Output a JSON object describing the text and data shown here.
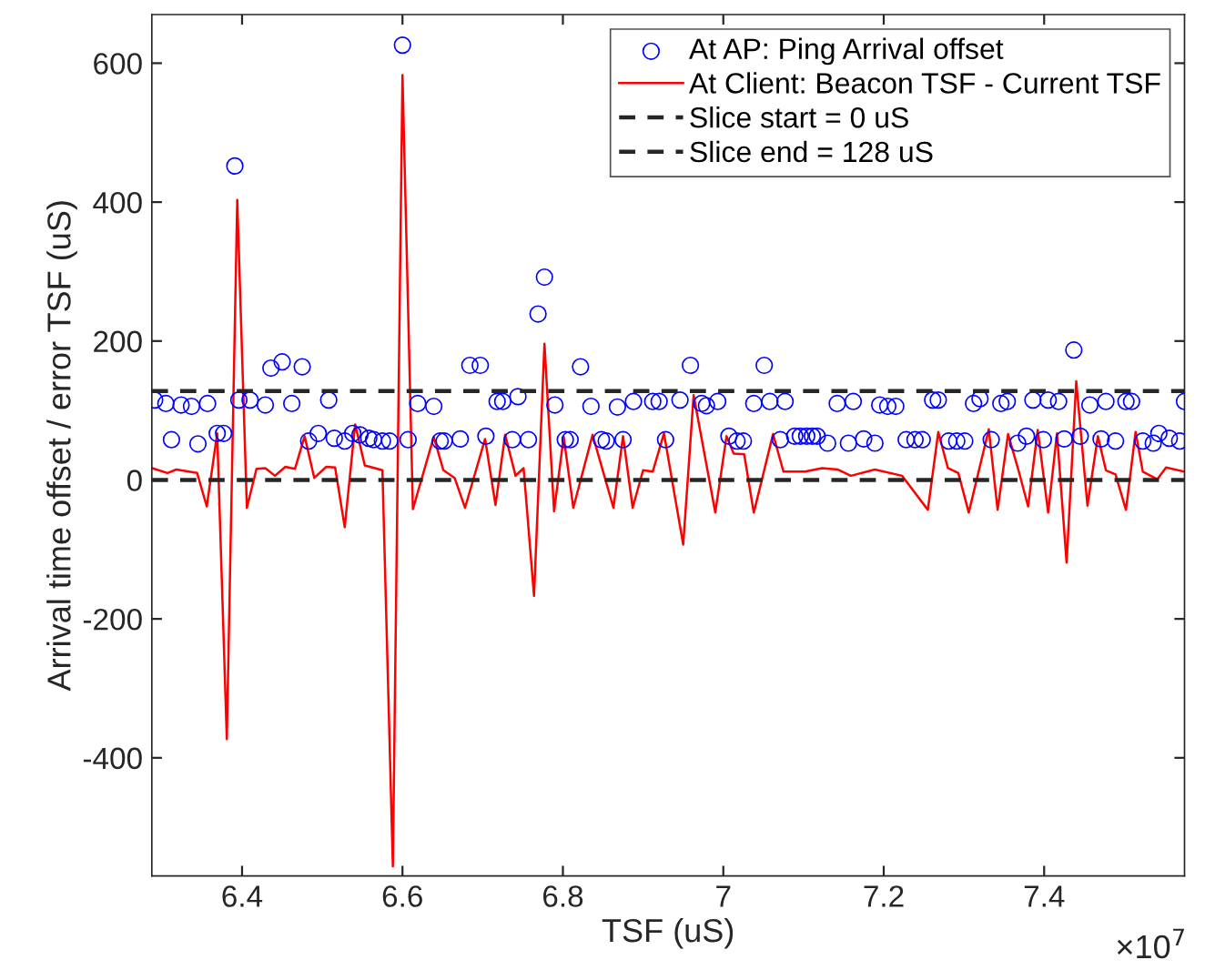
{
  "chart_data": {
    "type": "scatter",
    "xlabel": "TSF (uS)",
    "ylabel": "Arrival time offset / error TSF (uS)",
    "xlim": [
      6.2875,
      7.575
    ],
    "ylim": [
      -570,
      670
    ],
    "xticks": [
      6.4,
      6.6,
      6.8,
      7,
      7.2,
      7.4
    ],
    "yticks": [
      -400,
      -200,
      0,
      200,
      400,
      600
    ],
    "grid": false,
    "legend": "top right",
    "annotations": [
      "×10$^{7}$"
    ],
    "series": [
      {
        "name": "At AP: Ping Arrival offset",
        "marker": "circle",
        "color": "#0000ff",
        "x": [
          6.291,
          6.305,
          6.312,
          6.324,
          6.337,
          6.345,
          6.357,
          6.369,
          6.377,
          6.391,
          6.396,
          6.41,
          6.429,
          6.436,
          6.45,
          6.462,
          6.475,
          6.483,
          6.495,
          6.508,
          6.515,
          6.528,
          6.538,
          6.547,
          6.558,
          6.564,
          6.575,
          6.584,
          6.6,
          6.607,
          6.619,
          6.639,
          6.647,
          6.652,
          6.672,
          6.684,
          6.697,
          6.704,
          6.718,
          6.725,
          6.737,
          6.744,
          6.757,
          6.769,
          6.777,
          6.79,
          6.803,
          6.809,
          6.822,
          6.835,
          6.848,
          6.854,
          6.868,
          6.875,
          6.888,
          6.912,
          6.92,
          6.928,
          6.946,
          6.959,
          6.973,
          6.979,
          6.993,
          7.007,
          7.017,
          7.025,
          7.038,
          7.051,
          7.058,
          7.071,
          7.077,
          7.089,
          7.096,
          7.104,
          7.111,
          7.117,
          7.13,
          7.142,
          7.156,
          7.162,
          7.175,
          7.189,
          7.195,
          7.205,
          7.215,
          7.228,
          7.239,
          7.248,
          7.261,
          7.268,
          7.281,
          7.291,
          7.301,
          7.312,
          7.32,
          7.334,
          7.346,
          7.354,
          7.367,
          7.378,
          7.386,
          7.399,
          7.405,
          7.418,
          7.425,
          7.437,
          7.445,
          7.457,
          7.471,
          7.477,
          7.489,
          7.502,
          7.509,
          7.523,
          7.536,
          7.543,
          7.556,
          7.569,
          7.575
        ],
        "values": [
          115,
          110,
          58,
          108,
          106,
          52,
          110,
          67,
          67,
          452,
          115,
          115,
          108,
          161,
          170,
          110,
          163,
          56,
          67,
          115,
          60,
          56,
          67,
          65,
          60,
          58,
          56,
          56,
          626,
          58,
          110,
          106,
          56,
          56,
          59,
          165,
          165,
          63,
          113,
          113,
          58,
          120,
          58,
          239,
          292,
          108,
          58,
          58,
          163,
          106,
          58,
          56,
          105,
          58,
          113,
          113,
          113,
          58,
          115,
          165,
          110,
          107,
          113,
          63,
          56,
          56,
          110,
          165,
          113,
          58,
          113,
          63,
          63,
          63,
          63,
          63,
          53,
          110,
          53,
          113,
          59,
          53,
          108,
          106,
          106,
          58,
          58,
          58,
          115,
          115,
          56,
          56,
          56,
          110,
          117,
          58,
          110,
          113,
          53,
          63,
          115,
          58,
          115,
          113,
          59,
          187,
          63,
          108,
          59,
          113,
          56,
          113,
          113,
          56,
          53,
          67,
          60,
          56,
          113
        ]
      },
      {
        "name": "At Client: Beacon TSF - Current TSF",
        "type": "line",
        "marker": "none",
        "line_style": "solid",
        "color": "#ff0000",
        "x": [
          6.288,
          6.307,
          6.318,
          6.344,
          6.356,
          6.369,
          6.381,
          6.394,
          6.406,
          6.418,
          6.429,
          6.441,
          6.454,
          6.466,
          6.478,
          6.49,
          6.505,
          6.516,
          6.528,
          6.541,
          6.553,
          6.575,
          6.588,
          6.6,
          6.613,
          6.639,
          6.651,
          6.665,
          6.678,
          6.703,
          6.716,
          6.728,
          6.741,
          6.751,
          6.764,
          6.777,
          6.789,
          6.801,
          6.813,
          6.837,
          6.863,
          6.875,
          6.887,
          6.9,
          6.912,
          6.926,
          6.95,
          6.963,
          6.99,
          7.004,
          7.013,
          7.026,
          7.038,
          7.062,
          7.075,
          7.102,
          7.123,
          7.143,
          7.159,
          7.189,
          7.223,
          7.255,
          7.268,
          7.28,
          7.293,
          7.306,
          7.331,
          7.342,
          7.355,
          7.368,
          7.38,
          7.392,
          7.405,
          7.416,
          7.428,
          7.44,
          7.454,
          7.467,
          7.477,
          7.489,
          7.502,
          7.514,
          7.523,
          7.541,
          7.552,
          7.575
        ],
        "values": [
          17,
          10,
          15,
          10,
          -38,
          67,
          -373,
          403,
          -40,
          16,
          17,
          6,
          19,
          16,
          63,
          3,
          19,
          18,
          -68,
          80,
          21,
          14,
          -556,
          583,
          -42,
          62,
          14,
          3,
          -40,
          59,
          -36,
          65,
          6,
          17,
          -167,
          196,
          -45,
          62,
          -40,
          65,
          -40,
          63,
          -40,
          14,
          12,
          67,
          -93,
          122,
          -47,
          63,
          38,
          37,
          -47,
          66,
          12,
          12,
          17,
          15,
          6,
          15,
          6,
          -43,
          69,
          17,
          10,
          -47,
          73,
          -43,
          66,
          14,
          -38,
          72,
          -47,
          67,
          -119,
          142,
          -37,
          63,
          14,
          8,
          -43,
          69,
          12,
          1,
          18,
          12
        ]
      }
    ],
    "ref_lines": [
      {
        "axis": "y",
        "value": 0,
        "label": "Slice start = 0 uS",
        "color": "#262626",
        "line_style": "dashed"
      },
      {
        "axis": "y",
        "value": 128,
        "label": "Slice end = 128 uS",
        "color": "#262626",
        "line_style": "dashed"
      }
    ]
  }
}
